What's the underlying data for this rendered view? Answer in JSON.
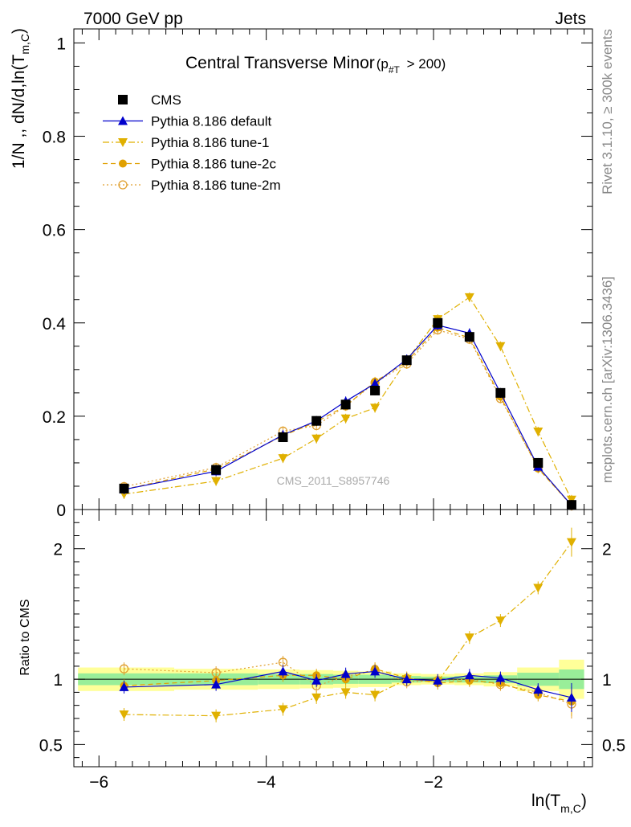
{
  "header": {
    "left": "7000 GeV pp",
    "right": "Jets",
    "title": "Central Transverse Minor",
    "title_cut_main": "(p",
    "title_cut_sub": "#T",
    "title_cut_tail": " > 200)",
    "watermark": "CMS_2011_S8957746",
    "side_top": "Rivet 3.1.10, ≥ 300k events",
    "side_bottom": "mcplots.cern.ch [arXiv:1306.3436]"
  },
  "axes": {
    "ylabel_main": "1/N ,, dN/d,ln(T",
    "ylabel_main_sub": "m,C",
    "ylabel_main_close": ")",
    "ylabel_ratio": "Ratio to CMS",
    "xlabel": "ln(T",
    "xlabel_sub": "m,C",
    "xlabel_close": ")"
  },
  "chart_data": {
    "type": "line",
    "xlim": [
      -6.3,
      -0.1
    ],
    "main_ylim": [
      0,
      1.03
    ],
    "ratio_ylim": [
      0.33,
      2.3
    ],
    "x_ticks": [
      -6,
      -4,
      -2
    ],
    "x_tick_labels": [
      "−6",
      "−4",
      "−2"
    ],
    "main_y_ticks": [
      0,
      0.2,
      0.4,
      0.6,
      0.8,
      1
    ],
    "main_y_tick_labels": [
      "0",
      "0.2",
      "0.4",
      "0.6",
      "0.8",
      "1"
    ],
    "ratio_y_ticks": [
      0.5,
      1,
      2
    ],
    "ratio_y_tick_labels": [
      "0.5",
      "1",
      "2"
    ],
    "x": [
      -5.7,
      -4.6,
      -3.8,
      -3.4,
      -3.05,
      -2.7,
      -2.32,
      -1.95,
      -1.57,
      -1.2,
      -0.75,
      -0.35
    ],
    "bins": [
      [
        -6.25,
        -5.1
      ],
      [
        -5.1,
        -4.1
      ],
      [
        -4.1,
        -3.6
      ],
      [
        -3.6,
        -3.2
      ],
      [
        -3.2,
        -2.9
      ],
      [
        -2.9,
        -2.5
      ],
      [
        -2.5,
        -2.15
      ],
      [
        -2.15,
        -1.75
      ],
      [
        -1.75,
        -1.4
      ],
      [
        -1.4,
        -1.0
      ],
      [
        -1.0,
        -0.5
      ],
      [
        -0.5,
        -0.2
      ]
    ],
    "band_green_halfwidth": [
      0.045,
      0.045,
      0.04,
      0.04,
      0.035,
      0.035,
      0.025,
      0.02,
      0.025,
      0.03,
      0.05,
      0.075
    ],
    "band_yellow_halfwidth": [
      0.09,
      0.08,
      0.075,
      0.07,
      0.065,
      0.06,
      0.045,
      0.04,
      0.045,
      0.055,
      0.09,
      0.15
    ],
    "series": [
      {
        "name": "CMS",
        "color": "#000000",
        "marker": "square",
        "line": "none",
        "values": [
          0.045,
          0.085,
          0.155,
          0.19,
          0.225,
          0.255,
          0.32,
          0.4,
          0.37,
          0.25,
          0.1,
          0.01
        ],
        "ratio": null
      },
      {
        "name": "Pythia 8.186 default",
        "color": "#0000cc",
        "marker": "triangle-up",
        "line": "solid",
        "values": [
          0.043,
          0.082,
          0.16,
          0.19,
          0.232,
          0.27,
          0.322,
          0.395,
          0.378,
          0.25,
          0.092,
          0.009
        ],
        "ratio": [
          0.94,
          0.96,
          1.06,
          0.99,
          1.04,
          1.06,
          1.0,
          0.99,
          1.03,
          1.01,
          0.92,
          0.86
        ]
      },
      {
        "name": "Pythia 8.186 tune-1",
        "color": "#e0b000",
        "marker": "triangle-down",
        "line": "dashdot",
        "values": [
          0.033,
          0.061,
          0.11,
          0.152,
          0.195,
          0.218,
          0.32,
          0.408,
          0.455,
          0.35,
          0.167,
          0.021
        ],
        "ratio": [
          0.73,
          0.72,
          0.77,
          0.86,
          0.9,
          0.88,
          1.0,
          0.98,
          1.32,
          1.45,
          1.7,
          2.05
        ]
      },
      {
        "name": "Pythia 8.186 tune-2c",
        "color": "#e0a000",
        "marker": "circle",
        "line": "dashed",
        "values": [
          0.043,
          0.087,
          0.158,
          0.188,
          0.222,
          0.274,
          0.317,
          0.39,
          0.368,
          0.242,
          0.088,
          0.009
        ],
        "ratio": [
          0.95,
          0.99,
          1.03,
          1.03,
          1.0,
          1.08,
          1.01,
          0.97,
          0.99,
          0.97,
          0.88,
          0.83
        ]
      },
      {
        "name": "Pythia 8.186 tune-2m",
        "color": "#e0a030",
        "marker": "circle-open",
        "line": "dotted",
        "values": [
          0.049,
          0.09,
          0.168,
          0.18,
          0.222,
          0.272,
          0.312,
          0.385,
          0.365,
          0.238,
          0.09,
          0.008
        ],
        "ratio": [
          1.08,
          1.05,
          1.13,
          0.95,
          1.02,
          1.07,
          0.98,
          0.99,
          1.0,
          0.96,
          0.9,
          0.81
        ]
      }
    ]
  }
}
